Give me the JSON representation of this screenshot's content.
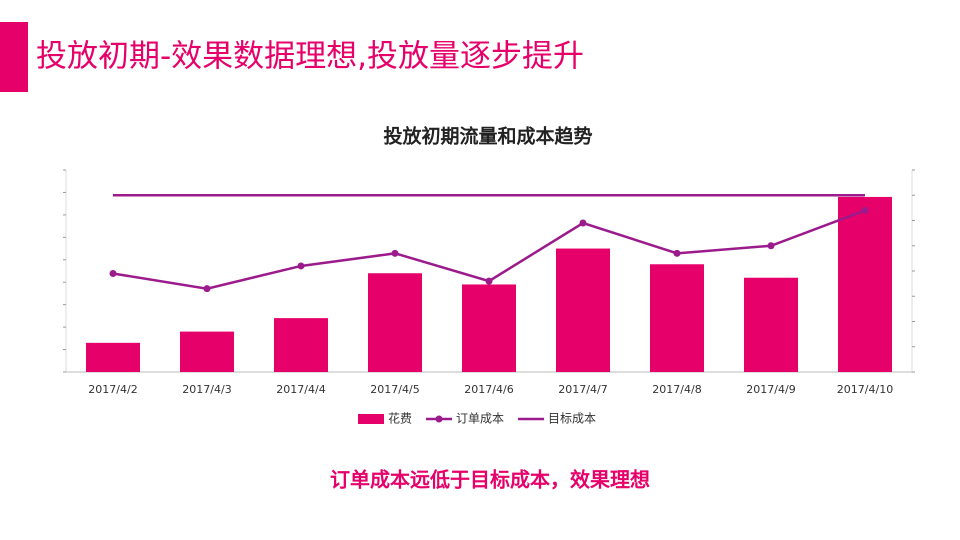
{
  "header": {
    "title": "投放初期-效果数据理想,投放量逐步提升"
  },
  "chart_data": {
    "type": "bar",
    "title": "投放初期流量和成本趋势",
    "categories": [
      "2017/4/2",
      "2017/4/3",
      "2017/4/4",
      "2017/4/5",
      "2017/4/6",
      "2017/4/7",
      "2017/4/8",
      "2017/4/9",
      "2017/4/10"
    ],
    "series": [
      {
        "name": "花费",
        "type": "bar",
        "color": "#e6006a",
        "values": [
          1.3,
          1.8,
          2.4,
          4.4,
          3.9,
          5.5,
          4.8,
          4.2,
          7.8
        ]
      },
      {
        "name": "订单成本",
        "type": "line",
        "marker": true,
        "axis": "y2",
        "color": "#9c1b8c",
        "values": [
          3.9,
          3.3,
          4.2,
          4.7,
          3.6,
          5.9,
          4.7,
          5.0,
          6.4
        ]
      },
      {
        "name": "目标成本",
        "type": "line",
        "marker": false,
        "axis": "y2",
        "color": "#9c1b8c",
        "values": [
          7.0,
          7.0,
          7.0,
          7.0,
          7.0,
          7.0,
          7.0,
          7.0,
          7.0
        ]
      }
    ],
    "ylim": [
      0,
      9
    ],
    "yticks": [
      0,
      1,
      2,
      3,
      4,
      5,
      6,
      7,
      8,
      9
    ],
    "y2lim": [
      0,
      8
    ],
    "y2ticks": [
      0,
      1,
      2,
      3,
      4,
      5,
      6,
      7,
      8
    ],
    "legend": "bottom"
  },
  "footer": {
    "text": "订单成本远低于目标成本，效果理想"
  }
}
